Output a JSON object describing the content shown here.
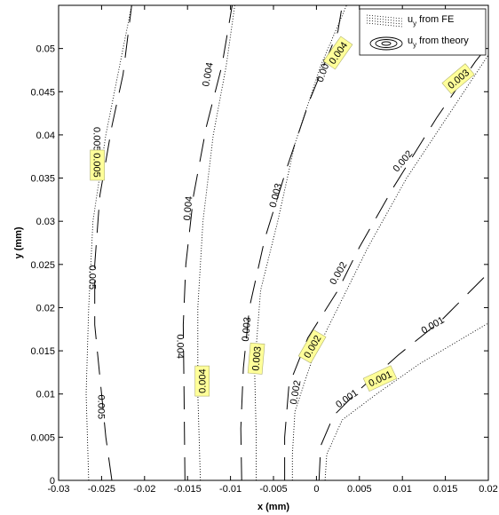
{
  "chart_data": {
    "type": "line",
    "xlabel": "x (mm)",
    "ylabel": "y (mm)",
    "xlim": [
      -0.03,
      0.02
    ],
    "ylim": [
      0,
      0.055
    ],
    "x_ticks": [
      "-0.03",
      "-0.025",
      "-0.02",
      "-0.015",
      "-0.01",
      "-0.005",
      "0",
      "0.005",
      "0.01",
      "0.015",
      "0.02"
    ],
    "y_ticks": [
      "0",
      "0.005",
      "0.01",
      "0.015",
      "0.02",
      "0.025",
      "0.03",
      "0.035",
      "0.04",
      "0.045",
      "0.05"
    ],
    "grid": false,
    "legend_position": "top-right",
    "series": [
      {
        "name": "u_y from FE",
        "style": "dotted",
        "contours": [
          {
            "level": "0.005",
            "points": [
              [
                -0.0265,
                0
              ],
              [
                -0.0268,
                0.01
              ],
              [
                -0.0265,
                0.02
              ],
              [
                -0.026,
                0.03
              ],
              [
                -0.0245,
                0.04
              ],
              [
                -0.0225,
                0.05
              ],
              [
                -0.0215,
                0.055
              ]
            ]
          },
          {
            "level": "0.004",
            "points": [
              [
                -0.0135,
                0
              ],
              [
                -0.0138,
                0.01
              ],
              [
                -0.0138,
                0.02
              ],
              [
                -0.0132,
                0.03
              ],
              [
                -0.012,
                0.04
              ],
              [
                -0.0105,
                0.048
              ],
              [
                -0.0095,
                0.055
              ]
            ]
          },
          {
            "level": "0.003",
            "points": [
              [
                -0.007,
                0
              ],
              [
                -0.007,
                0.005
              ],
              [
                -0.0072,
                0.013
              ],
              [
                -0.0065,
                0.022
              ],
              [
                -0.0045,
                0.03
              ],
              [
                -0.0025,
                0.039
              ],
              [
                0.0005,
                0.048
              ],
              [
                0.0035,
                0.055
              ]
            ]
          },
          {
            "level": "0.002",
            "points": [
              [
                -0.0028,
                0
              ],
              [
                -0.0028,
                0.003
              ],
              [
                -0.0025,
                0.008
              ],
              [
                -0.0005,
                0.014
              ],
              [
                0.0025,
                0.02
              ],
              [
                0.006,
                0.027
              ],
              [
                0.0105,
                0.035
              ],
              [
                0.0165,
                0.044
              ],
              [
                0.0205,
                0.05
              ]
            ]
          },
          {
            "level": "0.001",
            "points": [
              [
                0.001,
                0
              ],
              [
                0.0012,
                0.003
              ],
              [
                0.003,
                0.007
              ],
              [
                0.007,
                0.01
              ],
              [
                0.012,
                0.0135
              ],
              [
                0.0205,
                0.0185
              ]
            ]
          }
        ]
      },
      {
        "name": "u_y from theory",
        "style": "solid",
        "contours": [
          {
            "level": "0.005",
            "points": [
              [
                -0.0238,
                0
              ],
              [
                -0.0245,
                0.005
              ],
              [
                -0.025,
                0.01
              ],
              [
                -0.0258,
                0.018
              ],
              [
                -0.0258,
                0.025
              ],
              [
                -0.0252,
                0.033
              ],
              [
                -0.0238,
                0.041
              ],
              [
                -0.0225,
                0.047
              ],
              [
                -0.0215,
                0.055
              ]
            ]
          },
          {
            "level": "0.004",
            "points": [
              [
                -0.0153,
                0
              ],
              [
                -0.0154,
                0.01
              ],
              [
                -0.0155,
                0.018
              ],
              [
                -0.0152,
                0.025
              ],
              [
                -0.0143,
                0.033
              ],
              [
                -0.0128,
                0.041
              ],
              [
                -0.011,
                0.048
              ],
              [
                -0.0098,
                0.055
              ]
            ]
          },
          {
            "level": "0.003",
            "points": [
              [
                -0.0087,
                0
              ],
              [
                -0.0088,
                0.006
              ],
              [
                -0.0085,
                0.013
              ],
              [
                -0.0078,
                0.02
              ],
              [
                -0.006,
                0.028
              ],
              [
                -0.0035,
                0.036
              ],
              [
                -0.0008,
                0.044
              ],
              [
                0.0025,
                0.052
              ],
              [
                0.003,
                0.055
              ]
            ]
          },
          {
            "level": "0.002",
            "points": [
              [
                -0.0037,
                0
              ],
              [
                -0.0037,
                0.005
              ],
              [
                -0.0032,
                0.011
              ],
              [
                -0.001,
                0.0165
              ],
              [
                0.0025,
                0.022
              ],
              [
                0.005,
                0.027
              ],
              [
                0.009,
                0.034
              ],
              [
                0.014,
                0.042
              ],
              [
                0.0185,
                0.0485
              ],
              [
                0.0205,
                0.051
              ]
            ]
          },
          {
            "level": "0.001",
            "points": [
              [
                0.0003,
                0
              ],
              [
                0.0005,
                0.004
              ],
              [
                0.002,
                0.0075
              ],
              [
                0.005,
                0.0105
              ],
              [
                0.0095,
                0.0145
              ],
              [
                0.0145,
                0.0185
              ],
              [
                0.0205,
                0.0245
              ]
            ]
          }
        ]
      }
    ],
    "contour_labels": [
      {
        "text": "0.005",
        "x": -0.0255,
        "y": 0.0395,
        "angle": 90,
        "highlight": false
      },
      {
        "text": "0.005",
        "x": -0.0255,
        "y": 0.0365,
        "angle": 90,
        "highlight": true
      },
      {
        "text": "0.005",
        "x": -0.026,
        "y": 0.0235,
        "angle": 90,
        "highlight": false
      },
      {
        "text": "0.005",
        "x": -0.025,
        "y": 0.0085,
        "angle": 90,
        "highlight": false
      },
      {
        "text": "0.004",
        "x": -0.0127,
        "y": 0.047,
        "angle": -80,
        "highlight": false
      },
      {
        "text": "0.004",
        "x": -0.015,
        "y": 0.0315,
        "angle": -85,
        "highlight": false
      },
      {
        "text": "0.004",
        "x": -0.0158,
        "y": 0.0155,
        "angle": 90,
        "highlight": false
      },
      {
        "text": "0.004",
        "x": -0.0133,
        "y": 0.0115,
        "angle": -90,
        "highlight": true
      },
      {
        "text": "0.003",
        "x": -0.0048,
        "y": 0.033,
        "angle": -75,
        "highlight": false
      },
      {
        "text": "0.003",
        "x": -0.0082,
        "y": 0.0175,
        "angle": -85,
        "highlight": false
      },
      {
        "text": "0.003",
        "x": -0.007,
        "y": 0.0141,
        "angle": -85,
        "highlight": true
      },
      {
        "text": "0.003",
        "x": 0.0008,
        "y": 0.0475,
        "angle": -70,
        "highlight": false
      },
      {
        "text": "0.004",
        "x": 0.0025,
        "y": 0.0495,
        "angle": -55,
        "highlight": true
      },
      {
        "text": "0.003",
        "x": 0.0165,
        "y": 0.0465,
        "angle": -40,
        "highlight": true
      },
      {
        "text": "0.002",
        "x": 0.01,
        "y": 0.037,
        "angle": -50,
        "highlight": false
      },
      {
        "text": "0.002",
        "x": 0.0025,
        "y": 0.024,
        "angle": -60,
        "highlight": false
      },
      {
        "text": "0.002",
        "x": -0.0005,
        "y": 0.0155,
        "angle": -60,
        "highlight": true
      },
      {
        "text": "0.002",
        "x": -0.0025,
        "y": 0.0102,
        "angle": -80,
        "highlight": false
      },
      {
        "text": "0.001",
        "x": 0.0135,
        "y": 0.018,
        "angle": -30,
        "highlight": false
      },
      {
        "text": "0.001",
        "x": 0.0035,
        "y": 0.0095,
        "angle": -35,
        "highlight": false
      },
      {
        "text": "0.001",
        "x": 0.0074,
        "y": 0.0118,
        "angle": -25,
        "highlight": true
      }
    ],
    "legend": [
      {
        "label": "u",
        "subscript": "y",
        "suffix": " from FE",
        "style": "dotted"
      },
      {
        "label": "u",
        "subscript": "y",
        "suffix": " from theory",
        "style": "solid"
      }
    ],
    "colors": {
      "lines": "#000000",
      "highlight": "#ffff99",
      "background": "#ffffff"
    }
  }
}
